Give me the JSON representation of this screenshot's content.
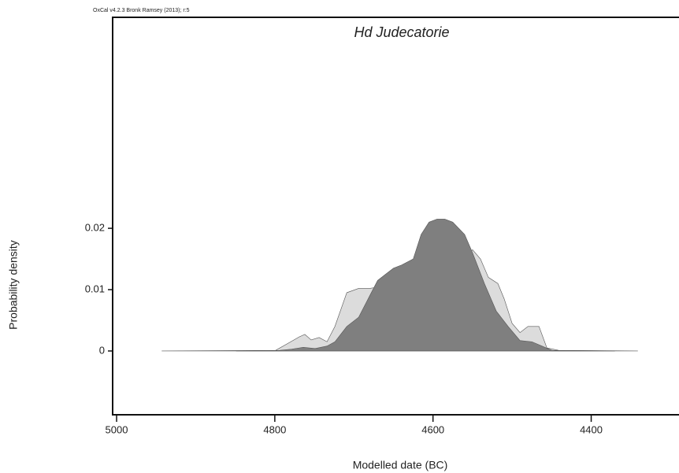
{
  "chart_data": {
    "type": "area",
    "header": "OxCal v4.2.3 Bronk Ramsey (2013); r:5",
    "title": "Hd Judecatorie",
    "xlabel": "Modelled date (BC)",
    "ylabel": "Probability density",
    "xlim": [
      5005,
      4289
    ],
    "xticks": [
      5000,
      4800,
      4600,
      4400
    ],
    "ylim": [
      -0.0104,
      0.0544
    ],
    "yticks": [
      0,
      0.01,
      0.02
    ],
    "series": [
      {
        "color": "#dcdcdc",
        "x": [
          4943,
          4799,
          4784,
          4769,
          4762,
          4754,
          4744,
          4734,
          4724,
          4709,
          4694,
          4680,
          4665,
          4650,
          4635,
          4620,
          4605,
          4590,
          4575,
          4565,
          4550,
          4540,
          4530,
          4518,
          4510,
          4500,
          4490,
          4480,
          4466,
          4456,
          4441,
          4341
        ],
        "values": [
          0,
          0.0001,
          0.0012,
          0.0023,
          0.0027,
          0.0018,
          0.0022,
          0.0015,
          0.004,
          0.0095,
          0.0102,
          0.0102,
          0.0105,
          0.011,
          0.0105,
          0.011,
          0.012,
          0.014,
          0.015,
          0.0145,
          0.0165,
          0.015,
          0.012,
          0.011,
          0.0085,
          0.0045,
          0.003,
          0.004,
          0.004,
          0.0005,
          0.0001,
          0
        ]
      },
      {
        "color": "#7f7f7f",
        "x": [
          4849,
          4794,
          4779,
          4764,
          4749,
          4734,
          4724,
          4709,
          4694,
          4680,
          4670,
          4660,
          4650,
          4640,
          4625,
          4615,
          4605,
          4595,
          4585,
          4575,
          4560,
          4550,
          4535,
          4520,
          4505,
          4490,
          4475,
          4462,
          4450,
          4370
        ],
        "values": [
          0,
          0.0001,
          0.0003,
          0.0006,
          0.0004,
          0.0008,
          0.0015,
          0.004,
          0.0055,
          0.009,
          0.0115,
          0.0125,
          0.0135,
          0.014,
          0.015,
          0.019,
          0.021,
          0.0215,
          0.0215,
          0.021,
          0.019,
          0.016,
          0.011,
          0.0065,
          0.004,
          0.0017,
          0.0015,
          0.0008,
          0.0001,
          0
        ]
      }
    ]
  }
}
